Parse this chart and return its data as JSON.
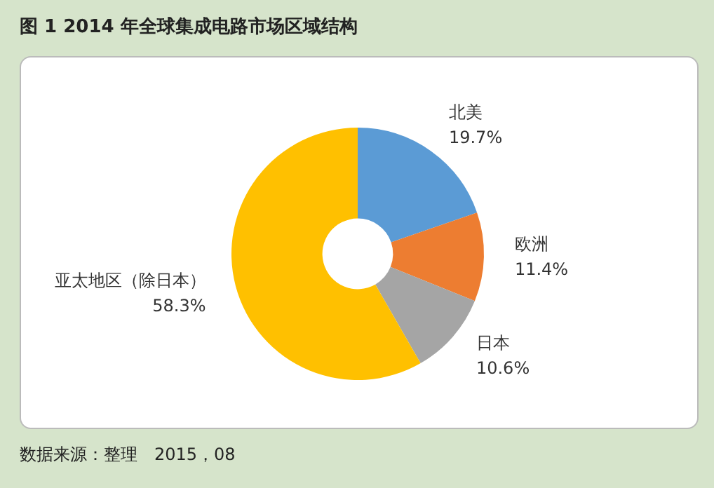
{
  "chart_data": {
    "type": "donut",
    "title": "图 1 2014 年全球集成电路市场区域结构",
    "categories": [
      "北美",
      "欧洲",
      "日本",
      "亚太地区（除日本）"
    ],
    "values": [
      19.7,
      11.4,
      10.6,
      58.3
    ],
    "value_labels": [
      "19.7%",
      "11.4%",
      "10.6%",
      "58.3%"
    ],
    "colors": [
      "#5b9bd5",
      "#ed7d31",
      "#a5a5a5",
      "#ffc000"
    ],
    "annotations": [
      "数据来源：整理　2015，08"
    ],
    "legend": false
  }
}
